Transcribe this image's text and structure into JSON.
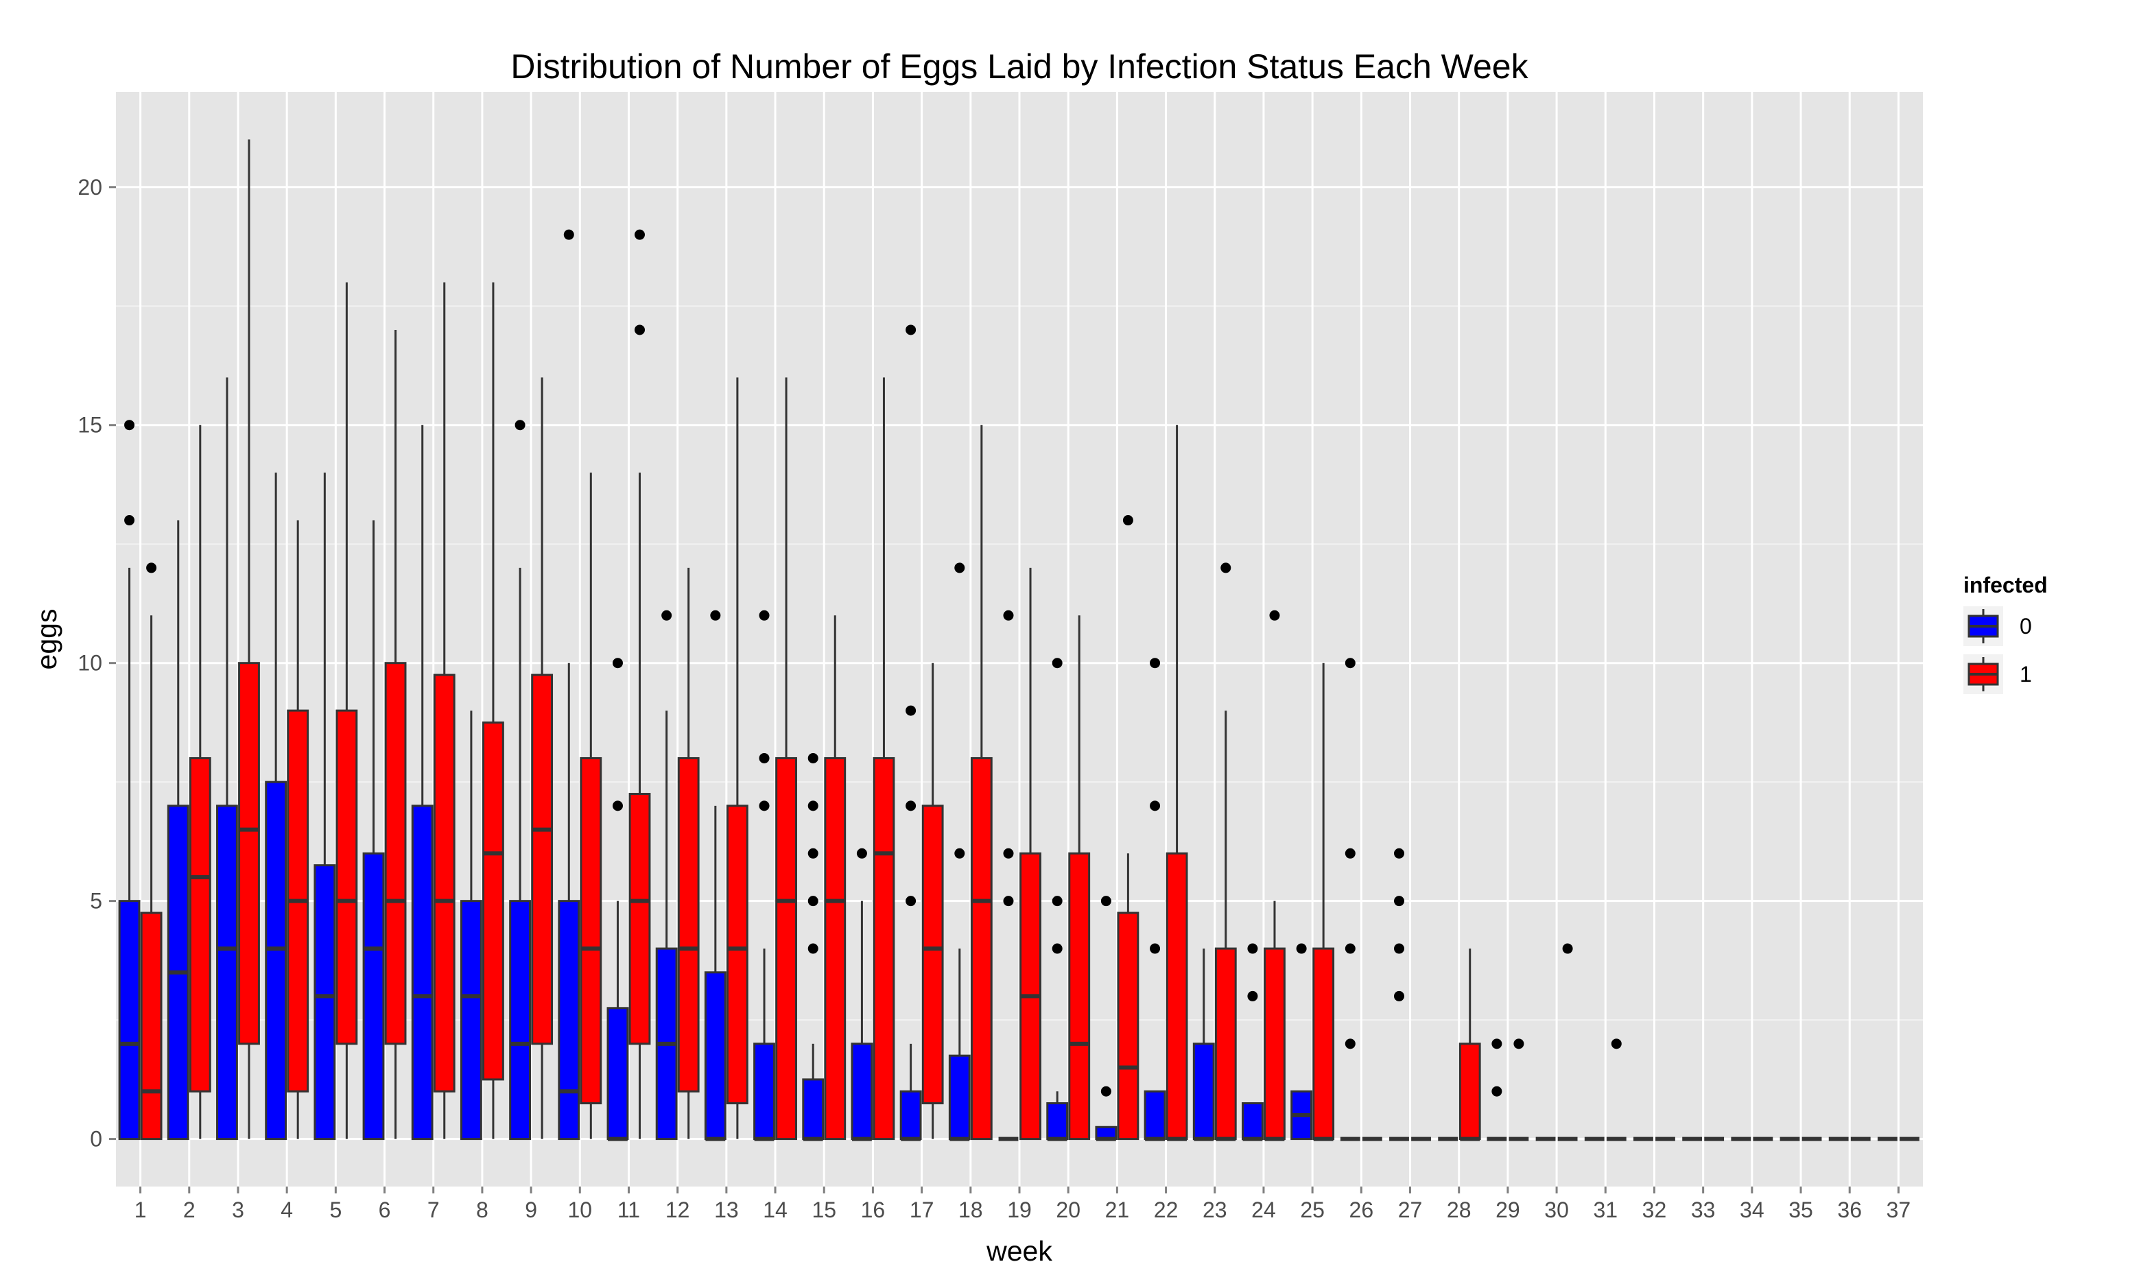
{
  "chart_data": {
    "type": "boxplot",
    "title": "Distribution of Number of Eggs Laid by Infection Status Each Week",
    "xlabel": "week",
    "ylabel": "eggs",
    "ylim": [
      -1,
      22
    ],
    "yticks": [
      0,
      5,
      10,
      15,
      20
    ],
    "grid": true,
    "legend_position": "right",
    "legend": {
      "title": "infected",
      "entries": [
        "0",
        "1"
      ]
    },
    "colors": {
      "0": "#0000ff",
      "1": "#ff0000",
      "panel": "#e5e5e5",
      "grid_major": "#ffffff",
      "grid_minor": "#f2f2f2",
      "outline": "#333333"
    },
    "categories": [
      "1",
      "2",
      "3",
      "4",
      "5",
      "6",
      "7",
      "8",
      "9",
      "10",
      "11",
      "12",
      "13",
      "14",
      "15",
      "16",
      "17",
      "18",
      "19",
      "20",
      "21",
      "22",
      "23",
      "24",
      "25",
      "26",
      "27",
      "28",
      "29",
      "30",
      "31",
      "32",
      "33",
      "34",
      "35",
      "36",
      "37"
    ],
    "series": [
      {
        "name": "0",
        "boxes": [
          {
            "low": 0,
            "q1": 0,
            "median": 2,
            "q3": 5,
            "high": 12,
            "outliers": [
              13,
              15
            ]
          },
          {
            "low": 0,
            "q1": 0,
            "median": 3.5,
            "q3": 7,
            "high": 13,
            "outliers": []
          },
          {
            "low": 0,
            "q1": 0,
            "median": 4,
            "q3": 7,
            "high": 16,
            "outliers": []
          },
          {
            "low": 0,
            "q1": 0,
            "median": 4,
            "q3": 7.5,
            "high": 14,
            "outliers": []
          },
          {
            "low": 0,
            "q1": 0,
            "median": 3,
            "q3": 5.75,
            "high": 14,
            "outliers": []
          },
          {
            "low": 0,
            "q1": 0,
            "median": 4,
            "q3": 6,
            "high": 13,
            "outliers": []
          },
          {
            "low": 0,
            "q1": 0,
            "median": 3,
            "q3": 7,
            "high": 15,
            "outliers": []
          },
          {
            "low": 0,
            "q1": 0,
            "median": 3,
            "q3": 5,
            "high": 9,
            "outliers": []
          },
          {
            "low": 0,
            "q1": 0,
            "median": 2,
            "q3": 5,
            "high": 12,
            "outliers": [
              15
            ]
          },
          {
            "low": 0,
            "q1": 0,
            "median": 1,
            "q3": 5,
            "high": 10,
            "outliers": [
              19
            ]
          },
          {
            "low": 0,
            "q1": 0,
            "median": 0,
            "q3": 2.75,
            "high": 5,
            "outliers": [
              7,
              10
            ]
          },
          {
            "low": 0,
            "q1": 0,
            "median": 2,
            "q3": 4,
            "high": 9,
            "outliers": [
              11
            ]
          },
          {
            "low": 0,
            "q1": 0,
            "median": 0,
            "q3": 3.5,
            "high": 7,
            "outliers": [
              11
            ]
          },
          {
            "low": 0,
            "q1": 0,
            "median": 0,
            "q3": 2,
            "high": 4,
            "outliers": [
              7,
              8,
              11
            ]
          },
          {
            "low": 0,
            "q1": 0,
            "median": 0,
            "q3": 1.25,
            "high": 2,
            "outliers": [
              4,
              5,
              6,
              7,
              8
            ]
          },
          {
            "low": 0,
            "q1": 0,
            "median": 0,
            "q3": 2,
            "high": 5,
            "outliers": [
              6
            ]
          },
          {
            "low": 0,
            "q1": 0,
            "median": 0,
            "q3": 1,
            "high": 2,
            "outliers": [
              5,
              7,
              9,
              17
            ]
          },
          {
            "low": 0,
            "q1": 0,
            "median": 0,
            "q3": 1.75,
            "high": 4,
            "outliers": [
              6,
              12
            ]
          },
          {
            "low": 0,
            "q1": 0,
            "median": 0,
            "q3": 0,
            "high": 0,
            "outliers": [
              5,
              6,
              11
            ]
          },
          {
            "low": 0,
            "q1": 0,
            "median": 0,
            "q3": 0.75,
            "high": 1,
            "outliers": [
              4,
              5,
              10
            ]
          },
          {
            "low": 0,
            "q1": 0,
            "median": 0,
            "q3": 0.25,
            "high": 0.25,
            "outliers": [
              1,
              5
            ]
          },
          {
            "low": 0,
            "q1": 0,
            "median": 0,
            "q3": 1,
            "high": 1,
            "outliers": [
              4,
              7,
              10
            ]
          },
          {
            "low": 0,
            "q1": 0,
            "median": 0,
            "q3": 2,
            "high": 4,
            "outliers": []
          },
          {
            "low": 0,
            "q1": 0,
            "median": 0,
            "q3": 0.75,
            "high": 0.75,
            "outliers": [
              3,
              4
            ]
          },
          {
            "low": 0,
            "q1": 0,
            "median": 0.5,
            "q3": 1,
            "high": 1,
            "outliers": [
              4
            ]
          },
          {
            "low": 0,
            "q1": 0,
            "median": 0,
            "q3": 0,
            "high": 0,
            "outliers": [
              2,
              4,
              6,
              10
            ]
          },
          {
            "low": 0,
            "q1": 0,
            "median": 0,
            "q3": 0,
            "high": 0,
            "outliers": [
              3,
              4,
              5,
              6
            ]
          },
          {
            "low": 0,
            "q1": 0,
            "median": 0,
            "q3": 0,
            "high": 0,
            "outliers": []
          },
          {
            "low": 0,
            "q1": 0,
            "median": 0,
            "q3": 0,
            "high": 0,
            "outliers": [
              1,
              2
            ]
          },
          {
            "low": 0,
            "q1": 0,
            "median": 0,
            "q3": 0,
            "high": 0,
            "outliers": []
          },
          {
            "low": 0,
            "q1": 0,
            "median": 0,
            "q3": 0,
            "high": 0,
            "outliers": []
          },
          {
            "low": 0,
            "q1": 0,
            "median": 0,
            "q3": 0,
            "high": 0,
            "outliers": []
          },
          {
            "low": 0,
            "q1": 0,
            "median": 0,
            "q3": 0,
            "high": 0,
            "outliers": []
          },
          {
            "low": 0,
            "q1": 0,
            "median": 0,
            "q3": 0,
            "high": 0,
            "outliers": []
          },
          {
            "low": 0,
            "q1": 0,
            "median": 0,
            "q3": 0,
            "high": 0,
            "outliers": []
          },
          {
            "low": 0,
            "q1": 0,
            "median": 0,
            "q3": 0,
            "high": 0,
            "outliers": []
          },
          {
            "low": 0,
            "q1": 0,
            "median": 0,
            "q3": 0,
            "high": 0,
            "outliers": []
          }
        ]
      },
      {
        "name": "1",
        "boxes": [
          {
            "low": 0,
            "q1": 0,
            "median": 1,
            "q3": 4.75,
            "high": 11,
            "outliers": [
              12
            ]
          },
          {
            "low": 0,
            "q1": 1,
            "median": 5.5,
            "q3": 8,
            "high": 15,
            "outliers": []
          },
          {
            "low": 0,
            "q1": 2,
            "median": 6.5,
            "q3": 10,
            "high": 21,
            "outliers": []
          },
          {
            "low": 0,
            "q1": 1,
            "median": 5,
            "q3": 9,
            "high": 13,
            "outliers": []
          },
          {
            "low": 0,
            "q1": 2,
            "median": 5,
            "q3": 9,
            "high": 18,
            "outliers": []
          },
          {
            "low": 0,
            "q1": 2,
            "median": 5,
            "q3": 10,
            "high": 17,
            "outliers": []
          },
          {
            "low": 0,
            "q1": 1,
            "median": 5,
            "q3": 9.75,
            "high": 18,
            "outliers": []
          },
          {
            "low": 0,
            "q1": 1.25,
            "median": 6,
            "q3": 8.75,
            "high": 18,
            "outliers": []
          },
          {
            "low": 0,
            "q1": 2,
            "median": 6.5,
            "q3": 9.75,
            "high": 16,
            "outliers": []
          },
          {
            "low": 0,
            "q1": 0.75,
            "median": 4,
            "q3": 8,
            "high": 14,
            "outliers": []
          },
          {
            "low": 0,
            "q1": 2,
            "median": 5,
            "q3": 7.25,
            "high": 14,
            "outliers": [
              17,
              19
            ]
          },
          {
            "low": 0,
            "q1": 1,
            "median": 4,
            "q3": 8,
            "high": 12,
            "outliers": []
          },
          {
            "low": 0,
            "q1": 0.75,
            "median": 4,
            "q3": 7,
            "high": 16,
            "outliers": []
          },
          {
            "low": 0,
            "q1": 0,
            "median": 5,
            "q3": 8,
            "high": 16,
            "outliers": []
          },
          {
            "low": 0,
            "q1": 0,
            "median": 5,
            "q3": 8,
            "high": 11,
            "outliers": []
          },
          {
            "low": 0,
            "q1": 0,
            "median": 6,
            "q3": 8,
            "high": 16,
            "outliers": []
          },
          {
            "low": 0,
            "q1": 0.75,
            "median": 4,
            "q3": 7,
            "high": 10,
            "outliers": []
          },
          {
            "low": 0,
            "q1": 0,
            "median": 5,
            "q3": 8,
            "high": 15,
            "outliers": []
          },
          {
            "low": 0,
            "q1": 0,
            "median": 3,
            "q3": 6,
            "high": 12,
            "outliers": []
          },
          {
            "low": 0,
            "q1": 0,
            "median": 2,
            "q3": 6,
            "high": 11,
            "outliers": []
          },
          {
            "low": 0,
            "q1": 0,
            "median": 1.5,
            "q3": 4.75,
            "high": 6,
            "outliers": [
              13
            ]
          },
          {
            "low": 0,
            "q1": 0,
            "median": 0,
            "q3": 6,
            "high": 15,
            "outliers": []
          },
          {
            "low": 0,
            "q1": 0,
            "median": 0,
            "q3": 4,
            "high": 9,
            "outliers": [
              12
            ]
          },
          {
            "low": 0,
            "q1": 0,
            "median": 0,
            "q3": 4,
            "high": 5,
            "outliers": [
              11
            ]
          },
          {
            "low": 0,
            "q1": 0,
            "median": 0,
            "q3": 4,
            "high": 10,
            "outliers": []
          },
          {
            "low": 0,
            "q1": 0,
            "median": 0,
            "q3": 0,
            "high": 0,
            "outliers": []
          },
          {
            "low": 0,
            "q1": 0,
            "median": 0,
            "q3": 0,
            "high": 0,
            "outliers": []
          },
          {
            "low": 0,
            "q1": 0,
            "median": 0,
            "q3": 2,
            "high": 4,
            "outliers": []
          },
          {
            "low": 0,
            "q1": 0,
            "median": 0,
            "q3": 0,
            "high": 0,
            "outliers": [
              2
            ]
          },
          {
            "low": 0,
            "q1": 0,
            "median": 0,
            "q3": 0,
            "high": 0,
            "outliers": [
              4
            ]
          },
          {
            "low": 0,
            "q1": 0,
            "median": 0,
            "q3": 0,
            "high": 0,
            "outliers": [
              2
            ]
          },
          {
            "low": 0,
            "q1": 0,
            "median": 0,
            "q3": 0,
            "high": 0,
            "outliers": []
          },
          {
            "low": 0,
            "q1": 0,
            "median": 0,
            "q3": 0,
            "high": 0,
            "outliers": []
          },
          {
            "low": 0,
            "q1": 0,
            "median": 0,
            "q3": 0,
            "high": 0,
            "outliers": []
          },
          {
            "low": 0,
            "q1": 0,
            "median": 0,
            "q3": 0,
            "high": 0,
            "outliers": []
          },
          {
            "low": 0,
            "q1": 0,
            "median": 0,
            "q3": 0,
            "high": 0,
            "outliers": []
          },
          {
            "low": 0,
            "q1": 0,
            "median": 0,
            "q3": 0,
            "high": 0,
            "outliers": []
          }
        ]
      }
    ]
  }
}
